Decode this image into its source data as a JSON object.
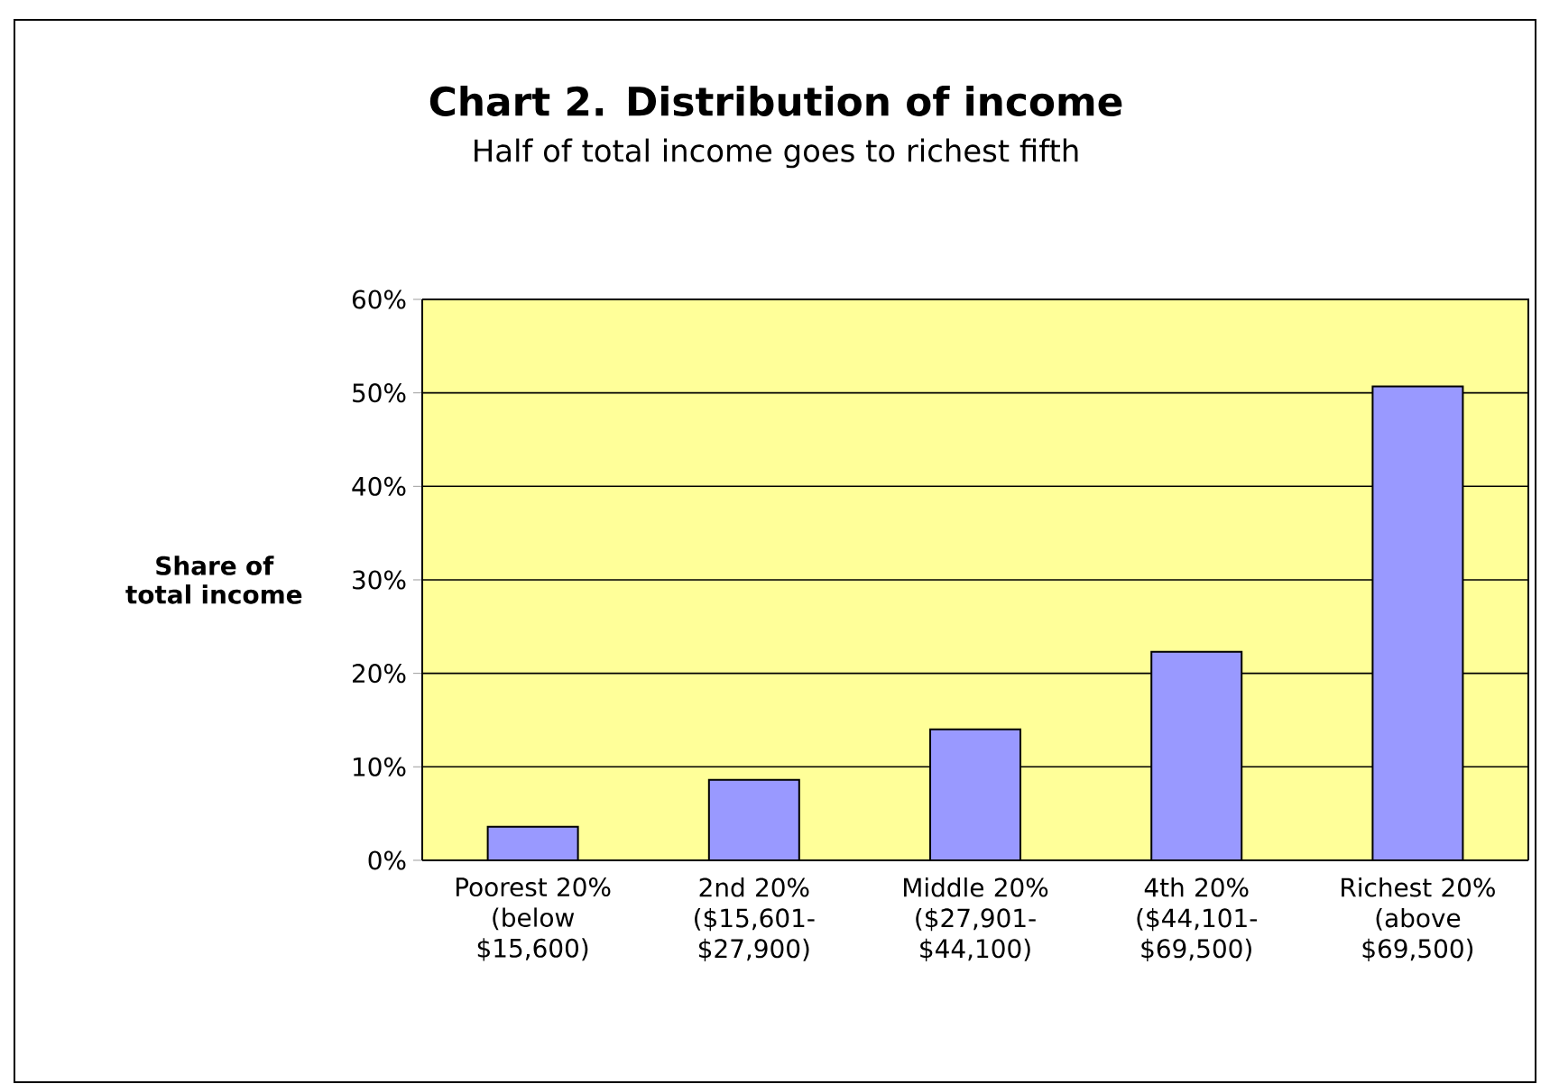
{
  "chart_data": {
    "type": "bar",
    "title": "Chart 2. Distribution of income",
    "subtitle": "Half of total income goes to richest fifth",
    "ylabel": "Share of total income",
    "categories": [
      "Poorest 20% (below $15,600)",
      "2nd 20% ($15,601- $27,900)",
      "Middle 20% ($27,901- $44,100)",
      "4th 20% ($44,101- $69,500)",
      "Richest 20% (above $69,500)"
    ],
    "values": [
      3.6,
      8.6,
      14.0,
      22.3,
      50.7
    ],
    "color": "#9999ff",
    "ylim": [
      0,
      60
    ],
    "yticks": [
      {
        "value": 0,
        "label": "0%"
      },
      {
        "value": 10,
        "label": "10%"
      },
      {
        "value": 20,
        "label": "20%"
      },
      {
        "value": 30,
        "label": "30%"
      },
      {
        "value": 40,
        "label": "40%"
      },
      {
        "value": 50,
        "label": "50%"
      },
      {
        "value": 60,
        "label": "60%"
      }
    ],
    "grid": "y"
  }
}
